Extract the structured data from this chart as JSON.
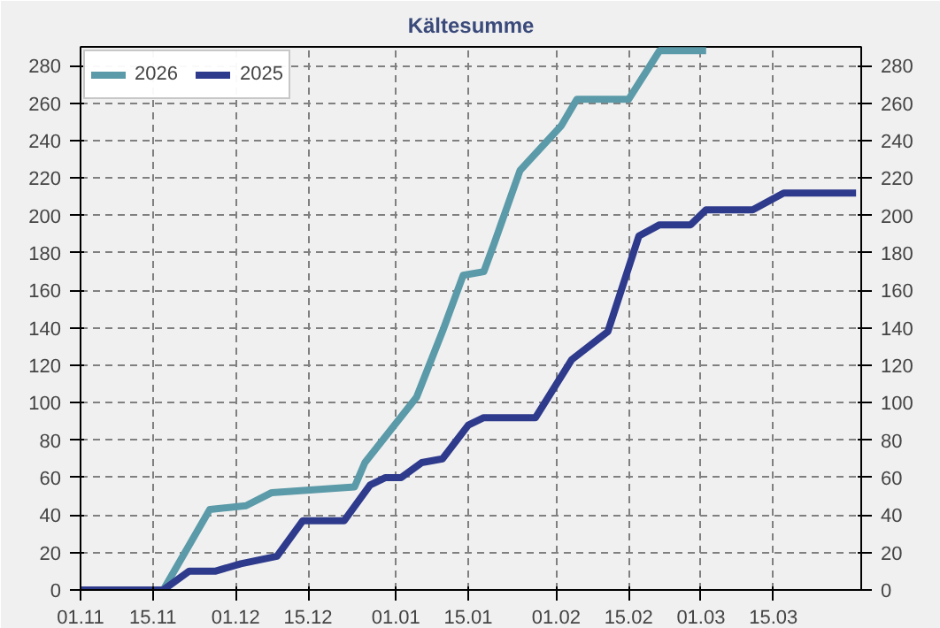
{
  "chart_data": {
    "type": "line",
    "title": "Kältesumme",
    "xlim": [
      "2025-11-01",
      "2026-04-01"
    ],
    "xticks": [
      {
        "value": "2025-11-01",
        "label": "01.11"
      },
      {
        "value": "2025-11-15",
        "label": "15.11"
      },
      {
        "value": "2025-12-01",
        "label": "01.12"
      },
      {
        "value": "2025-12-15",
        "label": "15.12"
      },
      {
        "value": "2026-01-01",
        "label": "01.01"
      },
      {
        "value": "2026-01-15",
        "label": "15.01"
      },
      {
        "value": "2026-02-01",
        "label": "01.02"
      },
      {
        "value": "2026-02-15",
        "label": "15.02"
      },
      {
        "value": "2026-03-01",
        "label": "01.03"
      },
      {
        "value": "2026-03-15",
        "label": "15.03"
      }
    ],
    "ylim": [
      0,
      290
    ],
    "yticks": [
      0,
      20,
      40,
      60,
      80,
      100,
      120,
      140,
      160,
      180,
      200,
      220,
      240,
      260,
      280
    ],
    "y2lim": [
      0,
      290
    ],
    "y2ticks": [
      0,
      20,
      40,
      60,
      80,
      100,
      120,
      140,
      160,
      180,
      200,
      220,
      240,
      260,
      280
    ],
    "grid": true,
    "legend": "top left",
    "line_style": "solid",
    "series": [
      {
        "name": "2026",
        "color": "#5b9aa8",
        "x": [
          "2025-11-01",
          "2025-11-17",
          "2025-11-26",
          "2025-12-03",
          "2025-12-08",
          "2025-12-24",
          "2025-12-26",
          "2026-01-05",
          "2026-01-10",
          "2026-01-14",
          "2026-01-18",
          "2026-01-20",
          "2026-01-25",
          "2026-01-27",
          "2026-02-02",
          "2026-02-05",
          "2026-02-15",
          "2026-02-21",
          "2026-03-02"
        ],
        "values": [
          0,
          0,
          43,
          45,
          52,
          55,
          68,
          103,
          138,
          168,
          170,
          185,
          224,
          230,
          248,
          262,
          262,
          288,
          288
        ]
      },
      {
        "name": "2025",
        "color": "#2e3a8c",
        "x": [
          "2025-11-01",
          "2025-11-17",
          "2025-11-22",
          "2025-11-27",
          "2025-12-02",
          "2025-12-09",
          "2025-12-14",
          "2025-12-22",
          "2025-12-27",
          "2025-12-30",
          "2026-01-02",
          "2026-01-06",
          "2026-01-10",
          "2026-01-15",
          "2026-01-18",
          "2026-01-28",
          "2026-02-04",
          "2026-02-11",
          "2026-02-17",
          "2026-02-21",
          "2026-02-27",
          "2026-03-02",
          "2026-03-11",
          "2026-03-17",
          "2026-03-31"
        ],
        "values": [
          0,
          0,
          10,
          10,
          14,
          18,
          37,
          37,
          56,
          60,
          60,
          68,
          70,
          88,
          92,
          92,
          123,
          138,
          189,
          195,
          195,
          203,
          203,
          212,
          212
        ]
      }
    ]
  }
}
